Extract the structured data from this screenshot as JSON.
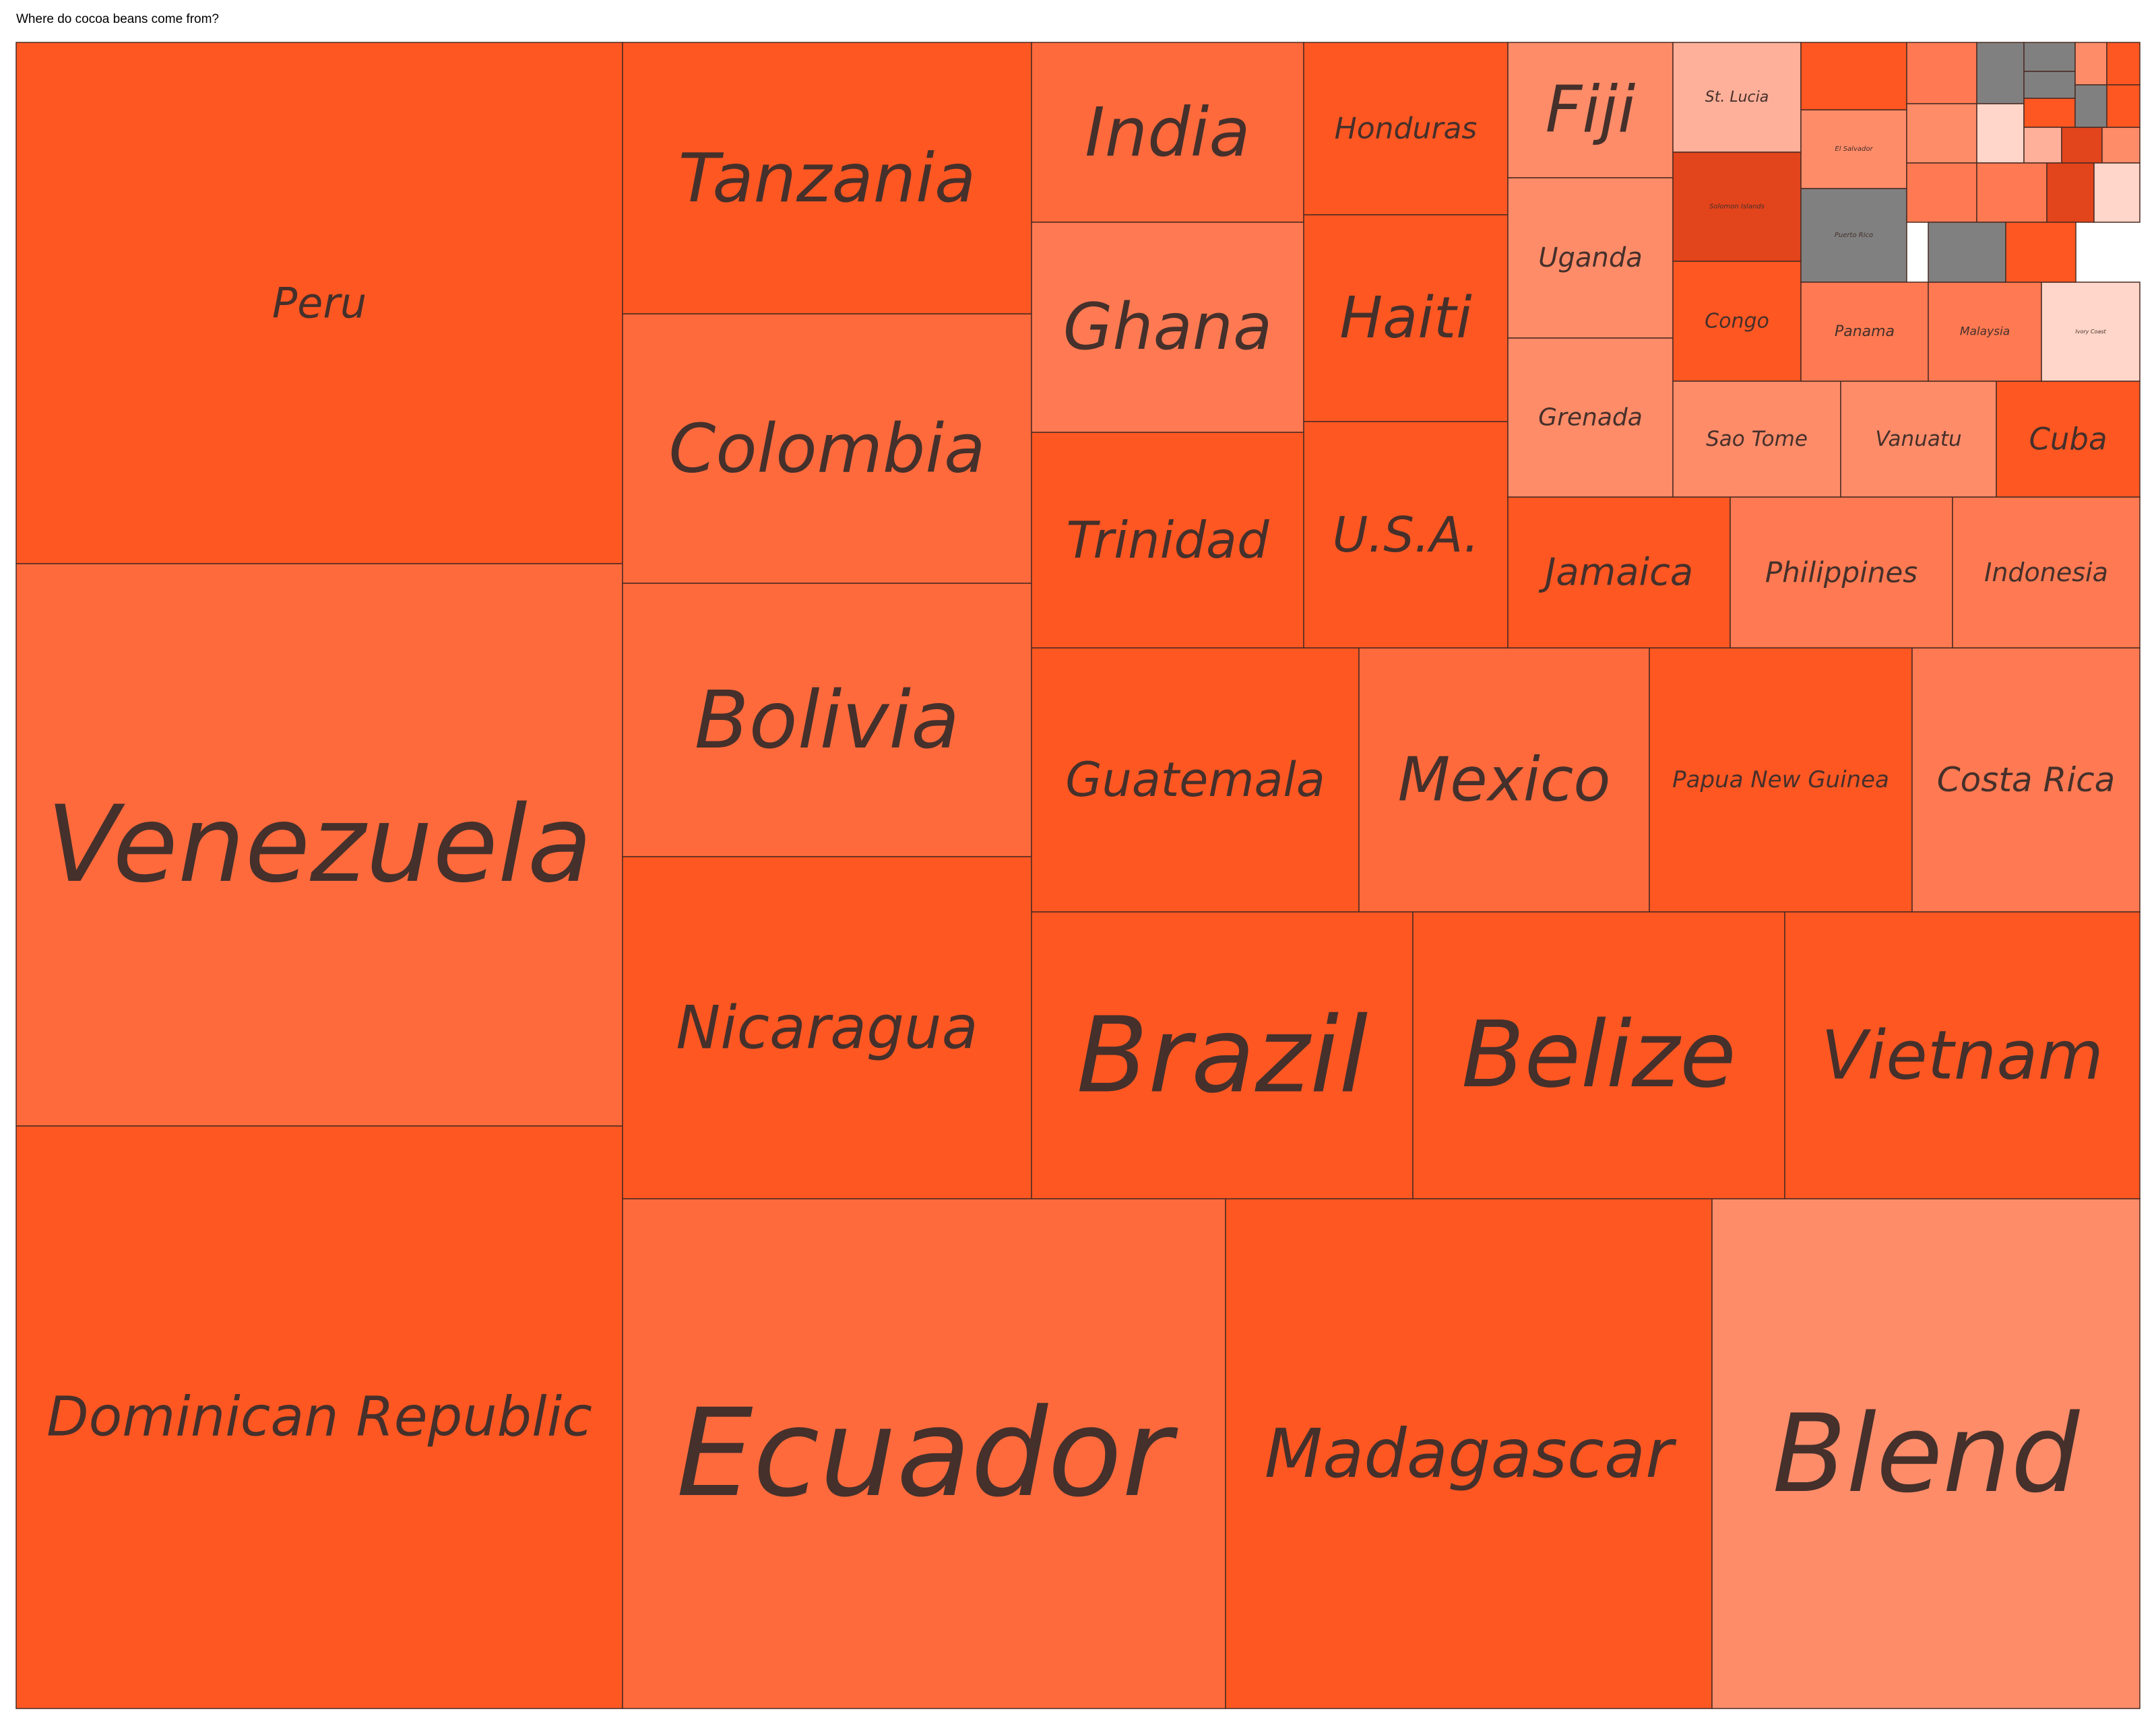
{
  "title": "Where do cocoa beans come from?",
  "colors": {
    "orange_dark": "#e2441c",
    "orange": "#ff5722",
    "orange_mid": "#ff6a3c",
    "orange_light": "#ff7a52",
    "salmon": "#ff8c69",
    "peach": "#ffb09a",
    "pale": "#ffd6c9",
    "gray": "#808080",
    "text": "#45302b",
    "border": "#4a2b22"
  },
  "chart_data": {
    "type": "treemap",
    "title": "Where do cocoa beans come from?",
    "cells": [
      {
        "label": "Peru",
        "value": 165
      },
      {
        "label": "Venezuela",
        "value": 150
      },
      {
        "label": "Dominican Republic",
        "value": 152
      },
      {
        "label": "Ecuador",
        "value": 145
      },
      {
        "label": "Madagascar",
        "value": 128
      },
      {
        "label": "Blend",
        "value": 112
      },
      {
        "label": "Nicaragua",
        "value": 60
      },
      {
        "label": "Bolivia",
        "value": 57
      },
      {
        "label": "Colombia",
        "value": 57
      },
      {
        "label": "Tanzania",
        "value": 57
      },
      {
        "label": "Brazil",
        "value": 56
      },
      {
        "label": "Belize",
        "value": 54
      },
      {
        "label": "Vietnam",
        "value": 53
      },
      {
        "label": "Guatemala",
        "value": 44
      },
      {
        "label": "Mexico",
        "value": 39
      },
      {
        "label": "Papua New Guinea",
        "value": 35
      },
      {
        "label": "Costa Rica",
        "value": 30
      },
      {
        "label": "India",
        "value": 25
      },
      {
        "label": "Ghana",
        "value": 29
      },
      {
        "label": "Trinidad",
        "value": 30
      },
      {
        "label": "Honduras",
        "value": 18
      },
      {
        "label": "Haiti",
        "value": 22
      },
      {
        "label": "U.S.A.",
        "value": 22
      },
      {
        "label": "Jamaica",
        "value": 17
      },
      {
        "label": "Philippines",
        "value": 17
      },
      {
        "label": "Indonesia",
        "value": 17
      },
      {
        "label": "Fiji",
        "value": 11
      },
      {
        "label": "Uganda",
        "value": 13
      },
      {
        "label": "Grenada",
        "value": 13
      },
      {
        "label": "St. Lucia",
        "value": 9
      },
      {
        "label": "Solomon Islands",
        "value": 6
      },
      {
        "label": "Congo",
        "value": 6
      },
      {
        "label": "Sao Tome",
        "value": 9
      },
      {
        "label": "Vanuatu",
        "value": 8
      },
      {
        "label": "Cuba",
        "value": 6
      },
      {
        "label": "El Salvador",
        "value": 3
      },
      {
        "label": "Puerto Rico",
        "value": 4
      },
      {
        "label": "Panama",
        "value": 4
      },
      {
        "label": "Malaysia",
        "value": 4
      },
      {
        "label": "Ivory Coast",
        "value": 4
      },
      {
        "label": "",
        "value": 2.5
      },
      {
        "label": "",
        "value": 2
      },
      {
        "label": "",
        "value": 1.3
      },
      {
        "label": "",
        "value": 1.3
      },
      {
        "label": "",
        "value": 0.6
      },
      {
        "label": "",
        "value": 0.6
      },
      {
        "label": "",
        "value": 0.6
      },
      {
        "label": "",
        "value": 0.5
      },
      {
        "label": "",
        "value": 0.4
      },
      {
        "label": "",
        "value": 0.5
      },
      {
        "label": "",
        "value": 0.5
      },
      {
        "label": "",
        "value": 0.3
      },
      {
        "label": "",
        "value": 0.3
      },
      {
        "label": "",
        "value": 0.3
      },
      {
        "label": "",
        "value": 0.6
      },
      {
        "label": "",
        "value": 0.6
      },
      {
        "label": "",
        "value": 0.5
      },
      {
        "label": "",
        "value": 0.5
      },
      {
        "label": "",
        "value": 1.6
      },
      {
        "label": "",
        "value": 1
      },
      {
        "label": "",
        "value": 1
      }
    ]
  }
}
